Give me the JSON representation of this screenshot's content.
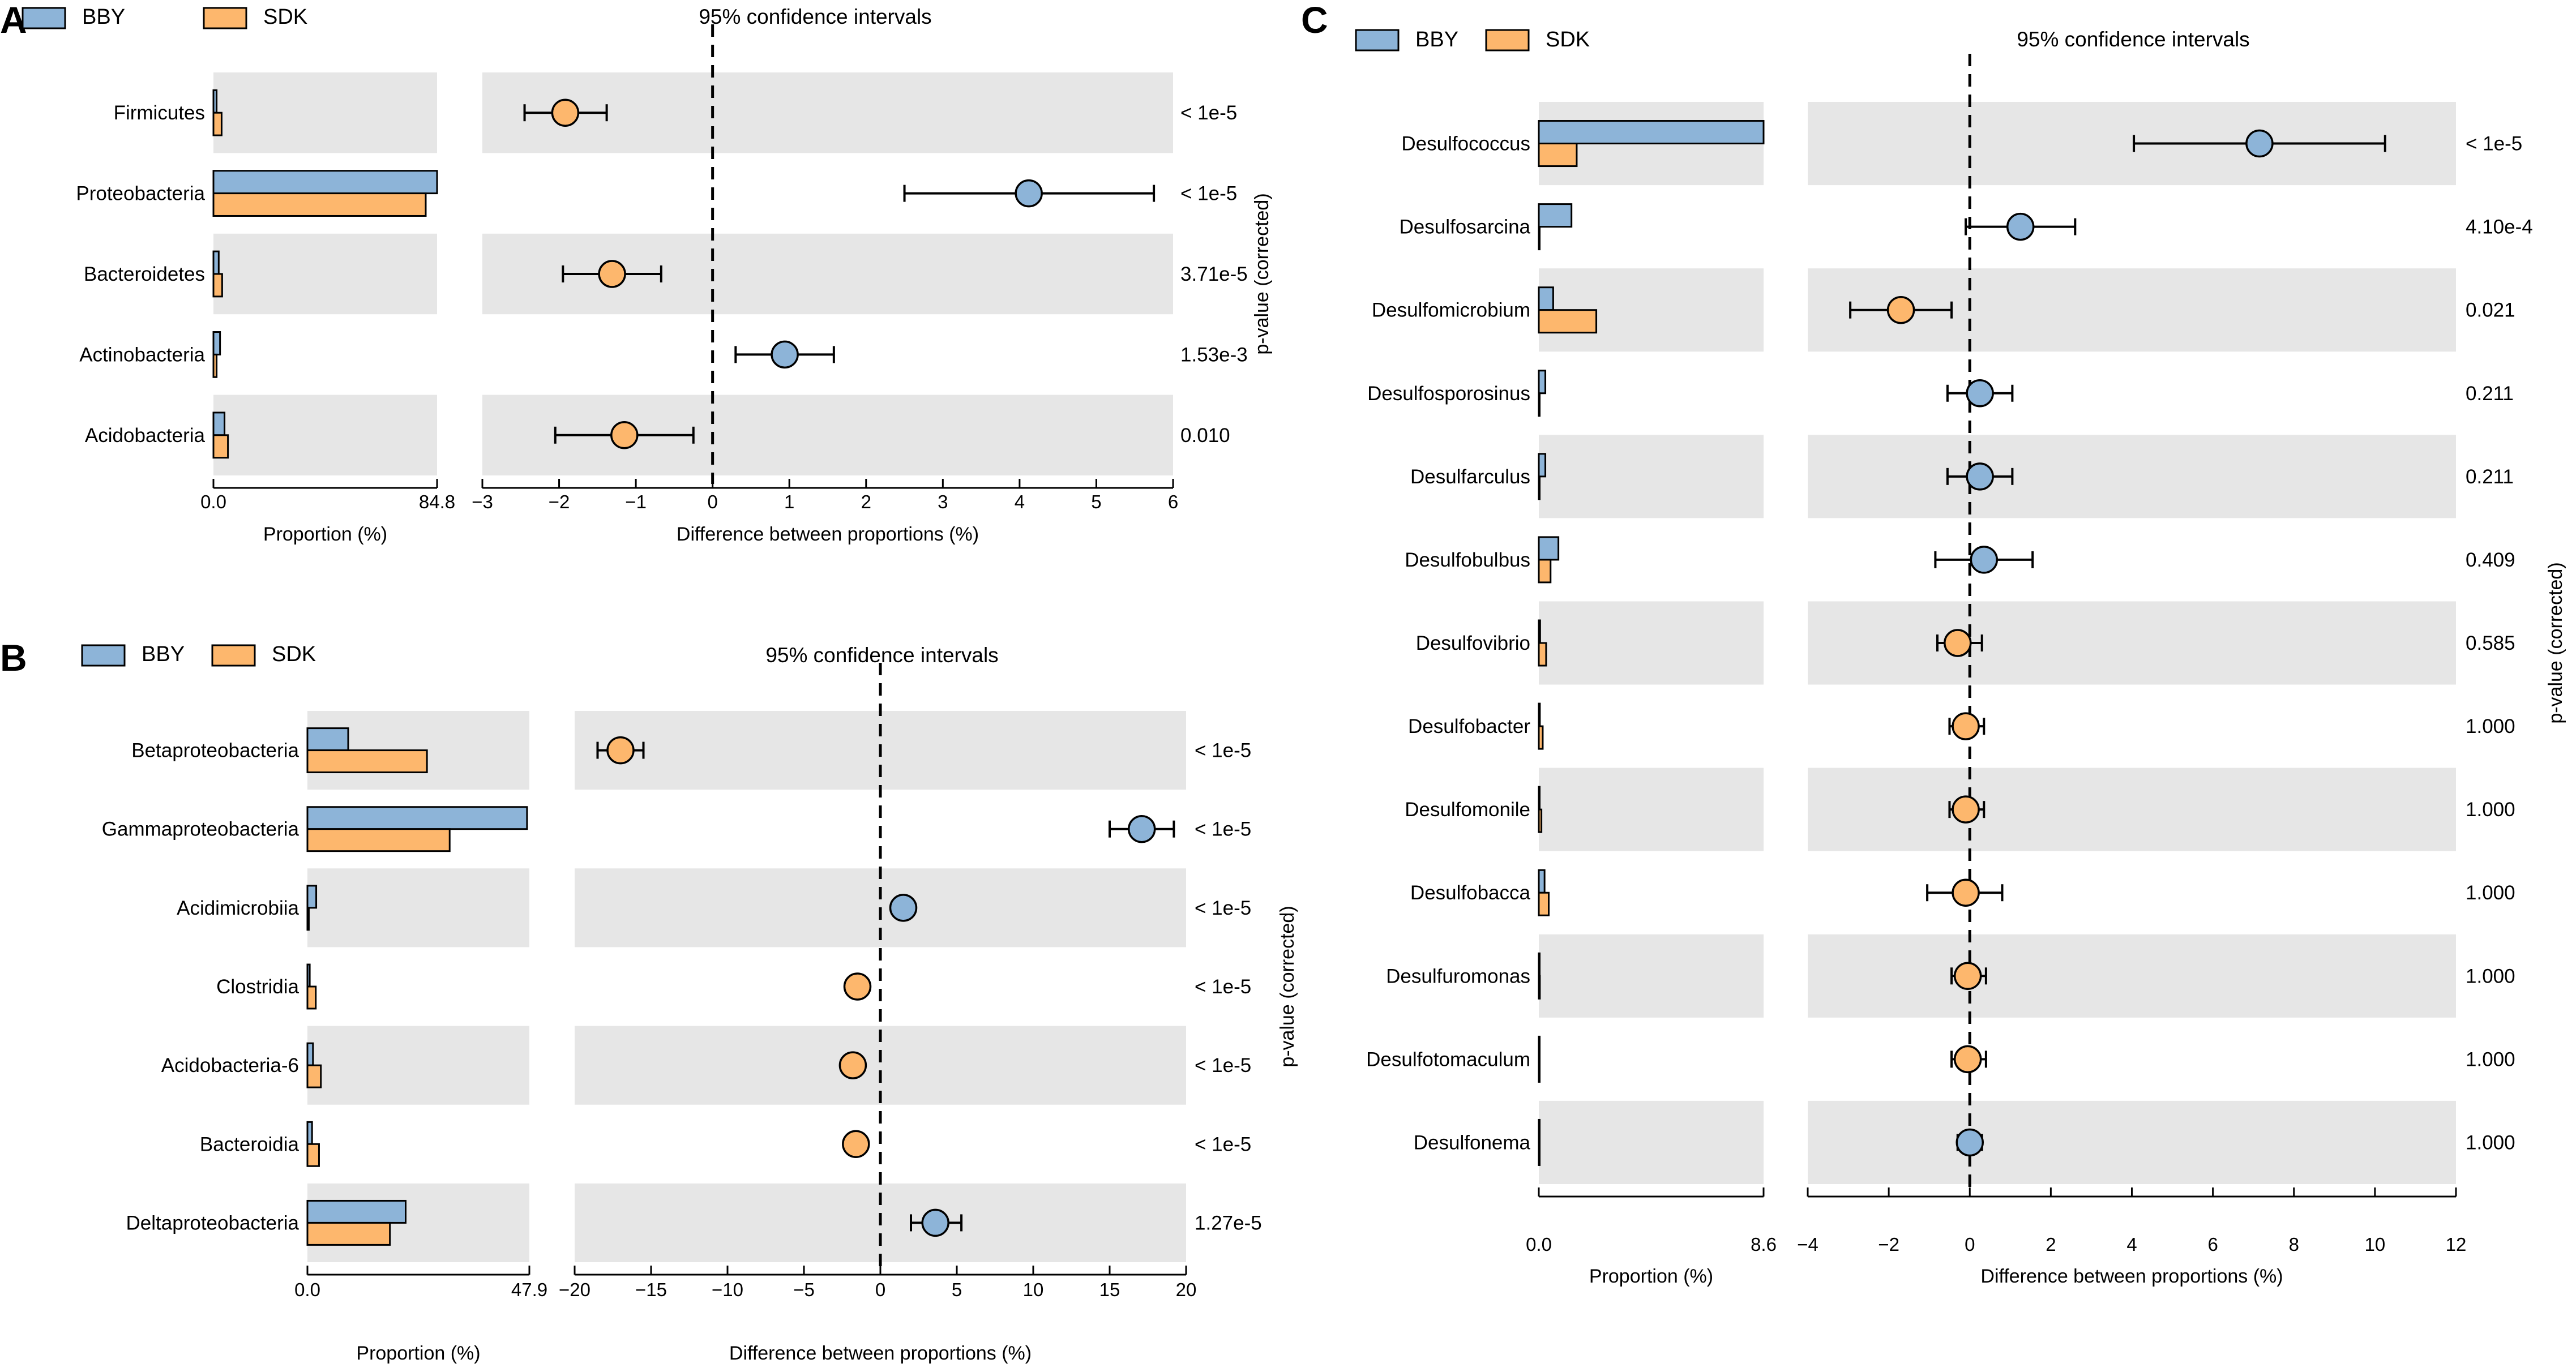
{
  "legend": {
    "bby": "BBY",
    "sdk": "SDK"
  },
  "colors": {
    "bby": "#8db4d8",
    "sdk": "#fdb76d",
    "stripe": "#e6e6e6",
    "edge": "#000000"
  },
  "chart_data": [
    {
      "panel": "A",
      "type": "bar",
      "ci_title": "95% confidence intervals",
      "xlabel_prop": "Proportion (%)",
      "xlabel_diff": "Difference between proportions (%)",
      "ylabel_p": "p-value (corrected)",
      "prop_max": 84.8,
      "prop_ticks": [
        "0.0",
        "84.8"
      ],
      "diff_xlim": [
        -3,
        6
      ],
      "diff_ticks": [
        -3,
        -2,
        -1,
        0,
        1,
        2,
        3,
        4,
        5,
        6
      ],
      "diff_tick_labels": [
        "−3",
        "−2",
        "−1",
        "0",
        "1",
        "2",
        "3",
        "4",
        "5",
        "6"
      ],
      "categories": [
        "Firmicutes",
        "Proteobacteria",
        "Bacteroidetes",
        "Actinobacteria",
        "Acidobacteria"
      ],
      "series": [
        {
          "name": "BBY",
          "values": [
            1.2,
            84.8,
            2.0,
            2.5,
            4.2
          ]
        },
        {
          "name": "SDK",
          "values": [
            3.1,
            80.5,
            3.3,
            1.2,
            5.5
          ]
        }
      ],
      "diff": [
        -1.92,
        4.12,
        -1.31,
        0.94,
        -1.15
      ],
      "ci_low": [
        -2.45,
        2.5,
        -1.95,
        0.3,
        -2.05
      ],
      "ci_high": [
        -1.38,
        5.75,
        -0.67,
        1.58,
        -0.25
      ],
      "pvalues": [
        "< 1e-5",
        "< 1e-5",
        "3.71e-5",
        "1.53e-3",
        "0.010"
      ]
    },
    {
      "panel": "B",
      "type": "bar",
      "ci_title": "95% confidence intervals",
      "xlabel_prop": "Proportion (%)",
      "xlabel_diff": "Difference between proportions (%)",
      "ylabel_p": "p-value (corrected)",
      "prop_max": 47.9,
      "prop_ticks": [
        "0.0",
        "47.9"
      ],
      "diff_xlim": [
        -20,
        20
      ],
      "diff_ticks": [
        -20,
        -15,
        -10,
        -5,
        0,
        5,
        10,
        15,
        20
      ],
      "diff_tick_labels": [
        "−20",
        "−15",
        "−10",
        "−5",
        "0",
        "5",
        "10",
        "15",
        "20"
      ],
      "categories": [
        "Betaproteobacteria",
        "Gammaproteobacteria",
        "Acidimicrobiia",
        "Clostridia",
        "Acidobacteria-6",
        "Bacteroidia",
        "Deltaproteobacteria"
      ],
      "series": [
        {
          "name": "BBY",
          "values": [
            8.8,
            47.4,
            1.9,
            0.5,
            1.2,
            1.0,
            21.2
          ]
        },
        {
          "name": "SDK",
          "values": [
            25.8,
            30.7,
            0.3,
            1.8,
            2.9,
            2.5,
            17.8
          ]
        }
      ],
      "diff": [
        -17.0,
        17.1,
        1.5,
        -1.5,
        -1.8,
        -1.6,
        3.6
      ],
      "ci_low": [
        -18.5,
        15.0,
        1.2,
        -1.8,
        -2.1,
        -1.9,
        2.0
      ],
      "ci_high": [
        -15.5,
        19.2,
        1.8,
        -1.2,
        -1.5,
        -1.3,
        5.3
      ],
      "pvalues": [
        "< 1e-5",
        "< 1e-5",
        "< 1e-5",
        "< 1e-5",
        "< 1e-5",
        "< 1e-5",
        "1.27e-5"
      ]
    },
    {
      "panel": "C",
      "type": "bar",
      "ci_title": "95% confidence intervals",
      "xlabel_prop": "Proportion (%)",
      "xlabel_diff": "Difference between proportions (%)",
      "ylabel_p": "p-value (corrected)",
      "prop_max": 8.6,
      "prop_ticks": [
        "0.0",
        "8.6"
      ],
      "diff_xlim": [
        -4,
        12
      ],
      "diff_ticks": [
        -4,
        -2,
        0,
        2,
        4,
        6,
        8,
        10,
        12
      ],
      "diff_tick_labels": [
        "−4",
        "−2",
        "0",
        "2",
        "4",
        "6",
        "8",
        "10",
        "12"
      ],
      "categories": [
        "Desulfococcus",
        "Desulfosarcina",
        "Desulfomicrobium",
        "Desulfosporosinus",
        "Desulfarculus",
        "Desulfobulbus",
        "Desulfovibrio",
        "Desulfobacter",
        "Desulfomonile",
        "Desulfobacca",
        "Desulfuromonas",
        "Desulfotomaculum",
        "Desulfonema"
      ],
      "series": [
        {
          "name": "BBY",
          "values": [
            8.6,
            1.25,
            0.55,
            0.25,
            0.25,
            0.75,
            0.05,
            0.04,
            0.03,
            0.22,
            0.02,
            0.02,
            0.02
          ]
        },
        {
          "name": "SDK",
          "values": [
            1.45,
            0.0,
            2.2,
            0.02,
            0.02,
            0.45,
            0.28,
            0.15,
            0.1,
            0.38,
            0.04,
            0.03,
            0.03
          ]
        }
      ],
      "diff": [
        7.15,
        1.25,
        -1.7,
        0.25,
        0.25,
        0.35,
        -0.3,
        -0.1,
        -0.1,
        -0.1,
        -0.05,
        -0.05,
        0.0
      ],
      "ci_low": [
        4.05,
        -0.1,
        -2.95,
        -0.55,
        -0.55,
        -0.85,
        -0.8,
        -0.5,
        -0.5,
        -1.05,
        -0.45,
        -0.45,
        -0.3
      ],
      "ci_high": [
        10.25,
        2.6,
        -0.45,
        1.05,
        1.05,
        1.55,
        0.3,
        0.35,
        0.35,
        0.8,
        0.4,
        0.4,
        0.3
      ],
      "pvalues": [
        "< 1e-5",
        "4.10e-4",
        "0.021",
        "0.211",
        "0.211",
        "0.409",
        "0.585",
        "1.000",
        "1.000",
        "1.000",
        "1.000",
        "1.000",
        "1.000"
      ],
      "marker_color": [
        "bby",
        "bby",
        "sdk",
        "bby",
        "bby",
        "bby",
        "sdk",
        "sdk",
        "sdk",
        "sdk",
        "sdk",
        "sdk",
        "bby"
      ]
    }
  ]
}
